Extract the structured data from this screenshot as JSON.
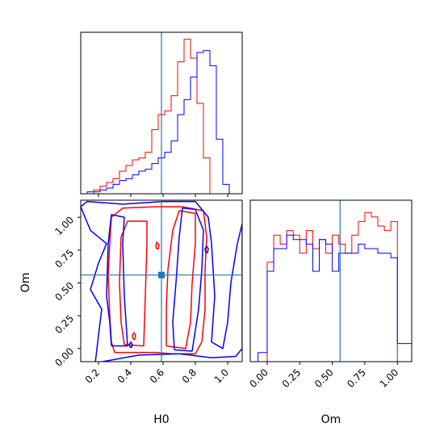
{
  "chart_data": {
    "type": "corner",
    "colors": {
      "series_a": "#ff0000",
      "series_b": "#0000ff",
      "truth": "#1f77b4",
      "frame": "#000000"
    },
    "parameters": [
      "H0",
      "Om"
    ],
    "truth": {
      "H0": 0.59,
      "Om": 0.56
    },
    "panels": [
      {
        "id": "hist-h0",
        "type": "histogram",
        "parameter": "H0",
        "xlim": [
          0.09,
          1.09
        ],
        "ticks": [
          0.2,
          0.4,
          0.6,
          0.8,
          1.0
        ],
        "series": [
          {
            "color": "#ff0000",
            "edges": [
              0.09,
              0.13,
              0.17,
              0.21,
              0.25,
              0.29,
              0.33,
              0.37,
              0.41,
              0.45,
              0.49,
              0.53,
              0.57,
              0.61,
              0.65,
              0.69,
              0.73,
              0.77,
              0.81,
              0.85,
              0.89,
              0.93,
              0.97,
              1.01,
              1.05,
              1.09
            ],
            "counts": [
              0,
              0,
              2,
              4,
              6,
              8,
              12,
              15,
              18,
              19,
              22,
              34,
              42,
              44,
              52,
              70,
              82,
              72,
              48,
              19,
              0,
              0,
              0,
              0,
              0
            ]
          },
          {
            "color": "#0000ff",
            "edges": [
              0.09,
              0.13,
              0.17,
              0.21,
              0.25,
              0.29,
              0.33,
              0.37,
              0.41,
              0.45,
              0.49,
              0.53,
              0.57,
              0.61,
              0.65,
              0.69,
              0.73,
              0.77,
              0.81,
              0.85,
              0.89,
              0.93,
              0.97,
              1.01,
              1.05,
              1.09
            ],
            "counts": [
              0,
              1,
              1,
              2,
              3,
              5,
              7,
              8,
              10,
              12,
              13,
              16,
              19,
              22,
              28,
              42,
              50,
              62,
              75,
              76,
              68,
              29,
              5,
              0,
              0
            ]
          }
        ]
      },
      {
        "id": "hist-om",
        "type": "histogram",
        "parameter": "Om",
        "xlim": [
          -0.13,
          1.11
        ],
        "ticks": [
          0.0,
          0.25,
          0.5,
          0.75,
          1.0
        ],
        "tick_labels": [
          "0.00",
          "0.25",
          "0.50",
          "0.75",
          "1.00"
        ],
        "series": [
          {
            "color": "#ff0000",
            "edges": [
              -0.05,
              0,
              0.05,
              0.1,
              0.15,
              0.2,
              0.25,
              0.3,
              0.35,
              0.4,
              0.45,
              0.5,
              0.55,
              0.6,
              0.65,
              0.7,
              0.75,
              0.8,
              0.85,
              0.9,
              0.95,
              1.0,
              1.05
            ],
            "counts": [
              0,
              44,
              56,
              52,
              58,
              56,
              48,
              58,
              50,
              54,
              48,
              56,
              52,
              48,
              56,
              62,
              66,
              64,
              60,
              58,
              62,
              0
            ]
          },
          {
            "color": "#0000ff",
            "edges": [
              -0.13,
              -0.07,
              0,
              0.05,
              0.1,
              0.15,
              0.2,
              0.25,
              0.3,
              0.35,
              0.4,
              0.45,
              0.5,
              0.55,
              0.6,
              0.65,
              0.7,
              0.75,
              0.8,
              0.85,
              0.9,
              0.95,
              1.0,
              1.05,
              1.11
            ],
            "counts": [
              0,
              4,
              40,
              50,
              50,
              56,
              54,
              54,
              52,
              40,
              54,
              52,
              40,
              48,
              48,
              48,
              52,
              50,
              50,
              48,
              48,
              46,
              8,
              8
            ]
          }
        ]
      },
      {
        "id": "contour-h0-om",
        "type": "contour",
        "x": "H0",
        "y": "Om",
        "xlim": [
          0.09,
          1.09
        ],
        "ylim": [
          -0.1,
          1.13
        ],
        "xticks": [
          0.2,
          0.4,
          0.6,
          0.8,
          1.0
        ],
        "yticks": [
          0.0,
          0.25,
          0.5,
          0.75,
          1.0
        ],
        "ytick_labels": [
          "0.00",
          "0.25",
          "0.50",
          "0.75",
          "1.00"
        ],
        "xlabel": "H0",
        "ylabel": "Om",
        "series": [
          {
            "color": "#ff0000",
            "contours": [
              [
                [
                  0.3,
                  -0.03
                ],
                [
                  0.55,
                  -0.03
                ],
                [
                  0.66,
                  -0.04
                ],
                [
                  0.8,
                  -0.04
                ],
                [
                  0.84,
                  0.05
                ],
                [
                  0.86,
                  0.3
                ],
                [
                  0.86,
                  0.6
                ],
                [
                  0.87,
                  0.85
                ],
                [
                  0.85,
                  1.05
                ],
                [
                  0.72,
                  1.08
                ],
                [
                  0.55,
                  1.08
                ],
                [
                  0.35,
                  1.07
                ],
                [
                  0.28,
                  1.0
                ],
                [
                  0.27,
                  0.8
                ],
                [
                  0.26,
                  0.55
                ],
                [
                  0.27,
                  0.25
                ],
                [
                  0.28,
                  0.05
                ],
                [
                  0.3,
                  -0.03
                ]
              ],
              [
                [
                  0.36,
                  0.03
                ],
                [
                  0.48,
                  0.02
                ],
                [
                  0.49,
                  0.4
                ],
                [
                  0.5,
                  0.8
                ],
                [
                  0.5,
                  0.97
                ],
                [
                  0.38,
                  0.97
                ],
                [
                  0.34,
                  0.85
                ],
                [
                  0.33,
                  0.5
                ],
                [
                  0.34,
                  0.2
                ],
                [
                  0.36,
                  0.03
                ]
              ],
              [
                [
                  0.62,
                  0.02
                ],
                [
                  0.74,
                  0.0
                ],
                [
                  0.77,
                  0.2
                ],
                [
                  0.78,
                  0.5
                ],
                [
                  0.8,
                  0.8
                ],
                [
                  0.8,
                  1.03
                ],
                [
                  0.7,
                  1.05
                ],
                [
                  0.66,
                  0.9
                ],
                [
                  0.63,
                  0.6
                ],
                [
                  0.62,
                  0.3
                ],
                [
                  0.62,
                  0.02
                ]
              ],
              [
                [
                  0.415,
                  0.07
                ],
                [
                  0.425,
                  0.07
                ],
                [
                  0.43,
                  0.1
                ],
                [
                  0.42,
                  0.12
                ],
                [
                  0.41,
                  0.1
                ],
                [
                  0.415,
                  0.07
                ]
              ],
              [
                [
                  0.56,
                  0.76
                ],
                [
                  0.57,
                  0.76
                ],
                [
                  0.575,
                  0.79
                ],
                [
                  0.56,
                  0.81
                ],
                [
                  0.555,
                  0.78
                ],
                [
                  0.56,
                  0.76
                ]
              ]
            ]
          },
          {
            "color": "#0000ff",
            "contours": [
              [
                [
                  0.18,
                  -0.11
                ],
                [
                  0.45,
                  -0.05
                ],
                [
                  0.7,
                  -0.04
                ],
                [
                  0.9,
                  -0.07
                ],
                [
                  1.05,
                  -0.06
                ],
                [
                  1.09,
                  0.0
                ],
                [
                  1.09,
                  0.95
                ],
                [
                  1.06,
                  0.8
                ],
                [
                  1.02,
                  0.5
                ],
                [
                  1.0,
                  0.2
                ],
                [
                  0.97,
                  0.0
                ],
                [
                  0.9,
                  0.05
                ],
                [
                  0.92,
                  0.4
                ],
                [
                  0.9,
                  0.8
                ],
                [
                  0.88,
                  1.0
                ],
                [
                  0.8,
                  1.12
                ],
                [
                  0.6,
                  1.12
                ],
                [
                  0.35,
                  1.1
                ],
                [
                  0.13,
                  1.12
                ],
                [
                  0.09,
                  1.08
                ],
                [
                  0.15,
                  0.9
                ],
                [
                  0.25,
                  0.8
                ],
                [
                  0.2,
                  0.65
                ],
                [
                  0.15,
                  0.45
                ],
                [
                  0.22,
                  0.3
                ],
                [
                  0.2,
                  0.1
                ],
                [
                  0.18,
                  -0.11
                ]
              ],
              [
                [
                  0.28,
                  0.02
                ],
                [
                  0.38,
                  0.02
                ],
                [
                  0.36,
                  0.4
                ],
                [
                  0.35,
                  0.8
                ],
                [
                  0.36,
                  1.0
                ],
                [
                  0.28,
                  1.02
                ],
                [
                  0.26,
                  0.8
                ],
                [
                  0.25,
                  0.4
                ],
                [
                  0.27,
                  0.2
                ],
                [
                  0.28,
                  0.02
                ]
              ],
              [
                [
                  0.67,
                  -0.01
                ],
                [
                  0.78,
                  -0.02
                ],
                [
                  0.82,
                  0.3
                ],
                [
                  0.84,
                  0.6
                ],
                [
                  0.85,
                  0.9
                ],
                [
                  0.8,
                  1.06
                ],
                [
                  0.72,
                  1.07
                ],
                [
                  0.7,
                  0.85
                ],
                [
                  0.68,
                  0.5
                ],
                [
                  0.66,
                  0.2
                ],
                [
                  0.67,
                  -0.01
                ]
              ],
              [
                [
                  0.865,
                  0.73
                ],
                [
                  0.875,
                  0.73
                ],
                [
                  0.88,
                  0.76
                ],
                [
                  0.87,
                  0.78
                ],
                [
                  0.86,
                  0.76
                ],
                [
                  0.865,
                  0.73
                ]
              ],
              [
                [
                  0.395,
                  0.01
                ],
                [
                  0.405,
                  0.01
                ],
                [
                  0.41,
                  0.03
                ],
                [
                  0.4,
                  0.05
                ],
                [
                  0.39,
                  0.03
                ],
                [
                  0.395,
                  0.01
                ]
              ]
            ]
          }
        ]
      }
    ]
  }
}
